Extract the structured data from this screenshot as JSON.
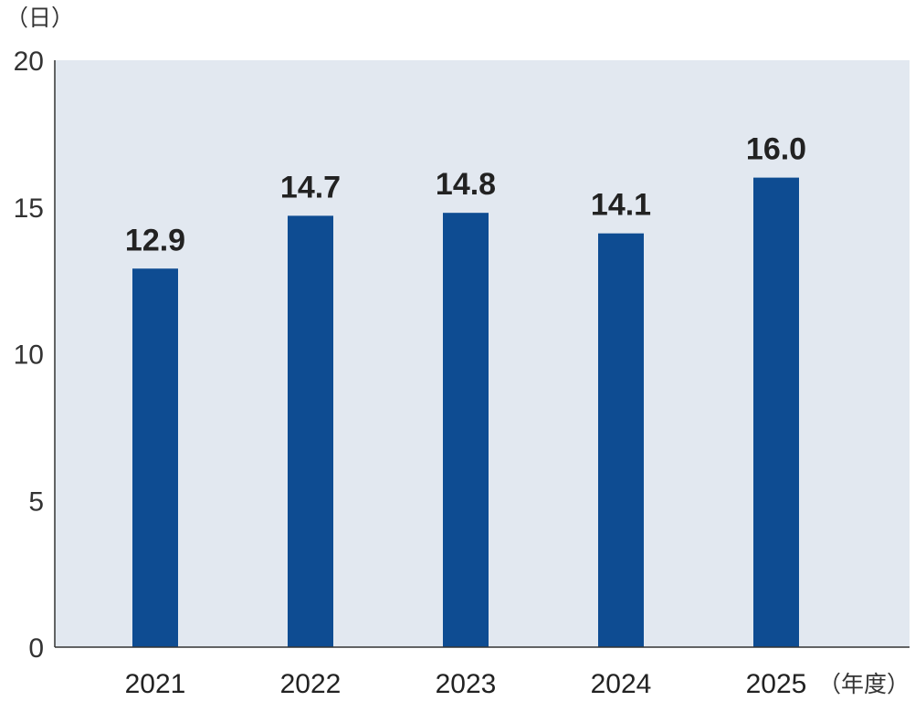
{
  "chart_data": {
    "type": "bar",
    "y_unit": "（日）",
    "x_unit": "（年度）",
    "categories": [
      "2021",
      "2022",
      "2023",
      "2024",
      "2025"
    ],
    "values": [
      12.9,
      14.7,
      14.8,
      14.1,
      16.0
    ],
    "value_labels": [
      "12.9",
      "14.7",
      "14.8",
      "14.1",
      "16.0"
    ],
    "y_ticks": [
      "0",
      "5",
      "10",
      "15",
      "20"
    ],
    "ylim": [
      0,
      20
    ],
    "grid": false,
    "colors": {
      "bar": "#0e4c92",
      "plot_bg": "#e2e8f0",
      "axis": "#333333"
    }
  }
}
